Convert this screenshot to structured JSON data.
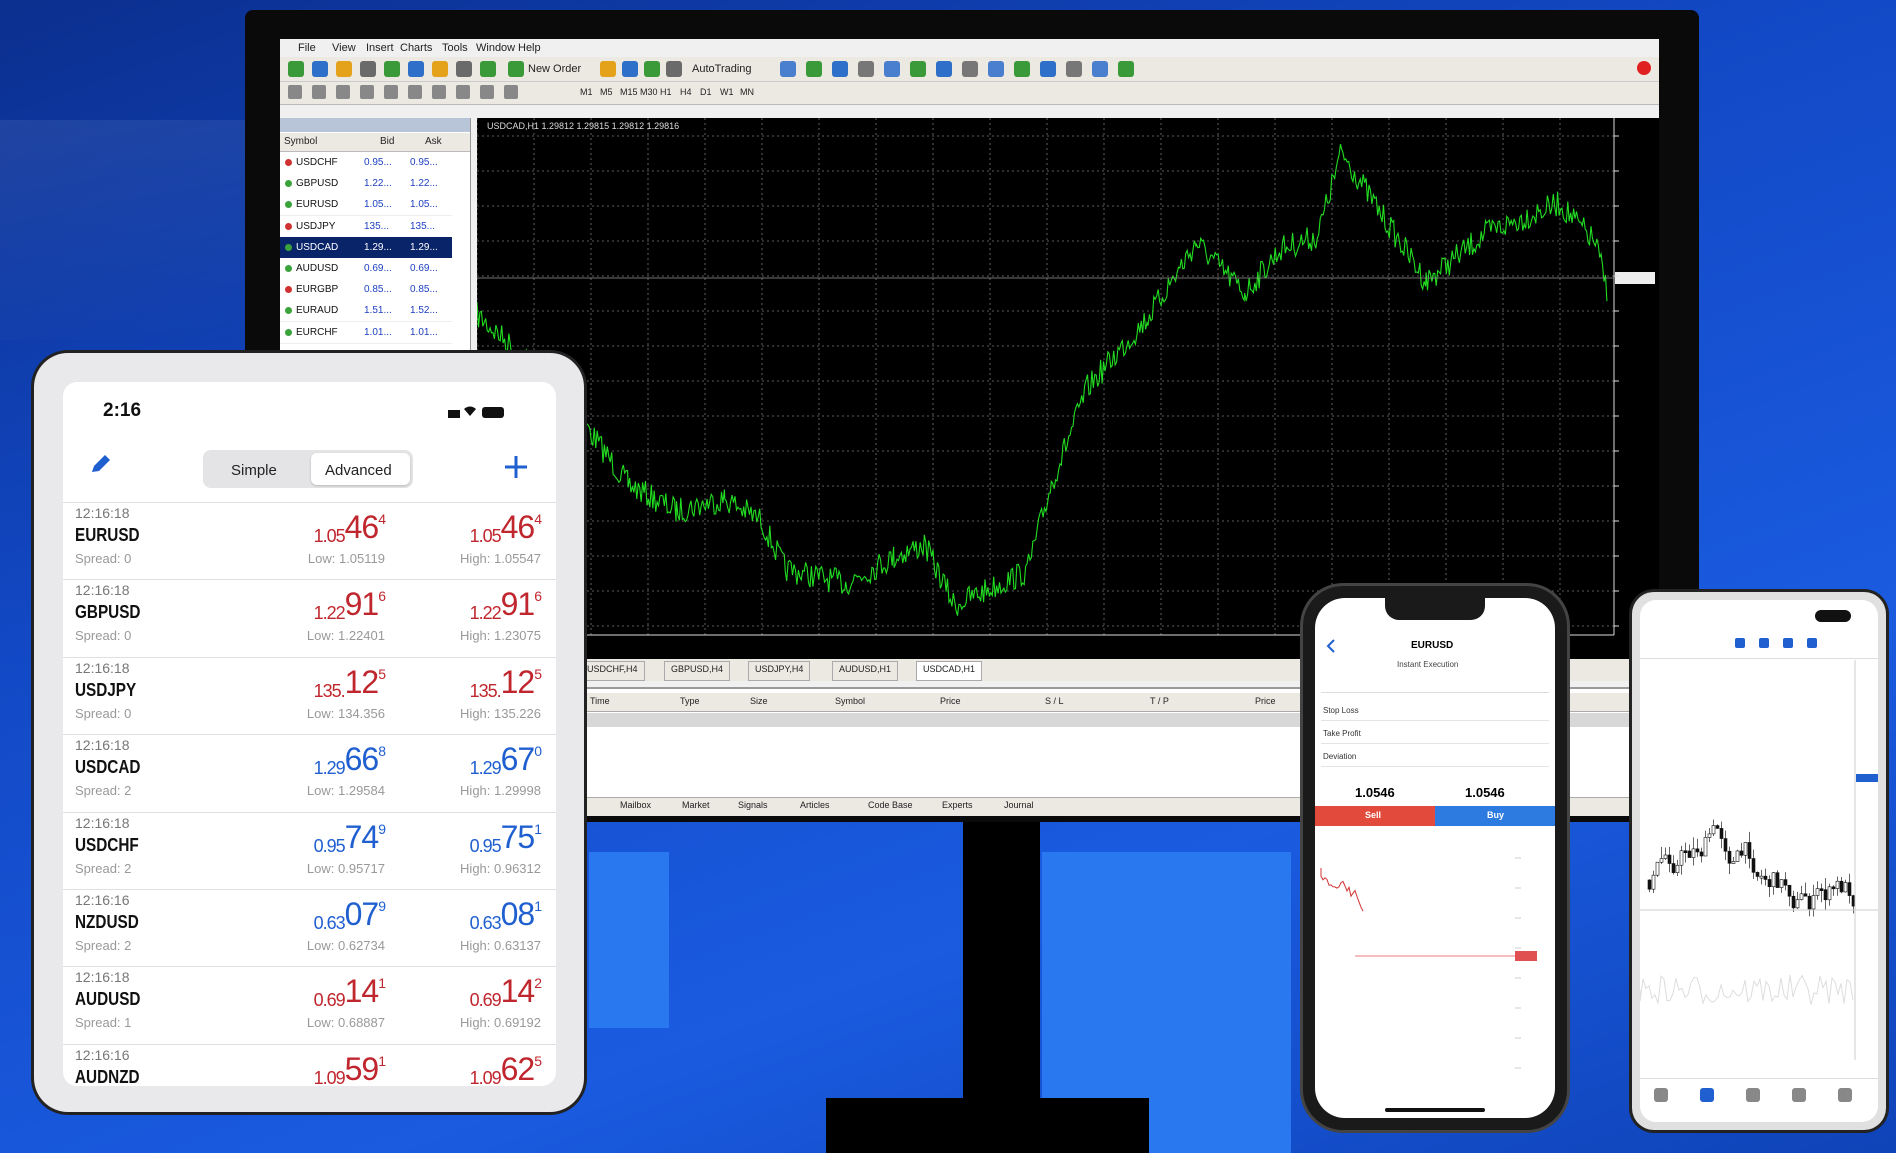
{
  "desktop": {
    "menu": [
      "File",
      "View",
      "Insert",
      "Charts",
      "Tools",
      "Window",
      "Help"
    ],
    "toolbar": [
      "New Order",
      "AutoTrading"
    ],
    "timeframes": [
      "M1",
      "M5",
      "M15",
      "M30",
      "H1",
      "H4",
      "D1",
      "W1",
      "MN"
    ],
    "market_watch": {
      "columns": [
        "Symbol",
        "Bid",
        "Ask"
      ],
      "rows": [
        [
          "USDCHF",
          "0.95...",
          "0.95..."
        ],
        [
          "GBPUSD",
          "1.22...",
          "1.22..."
        ],
        [
          "EURUSD",
          "1.05...",
          "1.05..."
        ],
        [
          "USDJPY",
          "135...",
          "135..."
        ],
        [
          "USDCAD",
          "1.29...",
          "1.29..."
        ],
        [
          "AUDUSD",
          "0.69...",
          "0.69..."
        ],
        [
          "EURGBP",
          "0.85...",
          "0.85..."
        ],
        [
          "EURAUD",
          "1.51...",
          "1.52..."
        ],
        [
          "EURCHF",
          "1.01...",
          "1.01..."
        ]
      ]
    },
    "chart_title": "USDCAD,H1 1.29812 1.29815 1.29812 1.29816",
    "chart_tabs": [
      "USDCHF,H4",
      "GBPUSD,H4",
      "USDJPY,H4",
      "AUDUSD,H1",
      "USDCAD,H1"
    ],
    "terminal_columns": [
      "Time",
      "Type",
      "Size",
      "Symbol",
      "Price",
      "S / L",
      "T / P",
      "Price"
    ],
    "terminal_tabs": [
      "Mailbox",
      "Market",
      "Signals",
      "Articles",
      "Code Base",
      "Experts",
      "Journal"
    ]
  },
  "tablet": {
    "time": "2:16",
    "modes": [
      "Simple",
      "Advanced"
    ],
    "quotes": [
      {
        "time": "12:16:18",
        "symbol": "EURUSD",
        "spread": "Spread: 0",
        "color": "#c0262d",
        "bid": [
          "1.05",
          "46",
          "4"
        ],
        "ask": [
          "1.05",
          "46",
          "4"
        ],
        "low": "Low: 1.05119",
        "high": "High: 1.05547"
      },
      {
        "time": "12:16:18",
        "symbol": "GBPUSD",
        "spread": "Spread: 0",
        "color": "#c0262d",
        "bid": [
          "1.22",
          "91",
          "6"
        ],
        "ask": [
          "1.22",
          "91",
          "6"
        ],
        "low": "Low: 1.22401",
        "high": "High: 1.23075"
      },
      {
        "time": "12:16:18",
        "symbol": "USDJPY",
        "spread": "Spread: 0",
        "color": "#c0262d",
        "bid": [
          "135.",
          "12",
          "5"
        ],
        "ask": [
          "135.",
          "12",
          "5"
        ],
        "low": "Low: 134.356",
        "high": "High: 135.226"
      },
      {
        "time": "12:16:18",
        "symbol": "USDCAD",
        "spread": "Spread: 2",
        "color": "#1f5fd0",
        "bid": [
          "1.29",
          "66",
          "8"
        ],
        "ask": [
          "1.29",
          "67",
          "0"
        ],
        "low": "Low: 1.29584",
        "high": "High: 1.29998"
      },
      {
        "time": "12:16:18",
        "symbol": "USDCHF",
        "spread": "Spread: 2",
        "color": "#1f5fd0",
        "bid": [
          "0.95",
          "74",
          "9"
        ],
        "ask": [
          "0.95",
          "75",
          "1"
        ],
        "low": "Low: 0.95717",
        "high": "High: 0.96312"
      },
      {
        "time": "12:16:16",
        "symbol": "NZDUSD",
        "spread": "Spread: 2",
        "color": "#1f5fd0",
        "bid": [
          "0.63",
          "07",
          "9"
        ],
        "ask": [
          "0.63",
          "08",
          "1"
        ],
        "low": "Low: 0.62734",
        "high": "High: 0.63137"
      },
      {
        "time": "12:16:18",
        "symbol": "AUDUSD",
        "spread": "Spread: 1",
        "color": "#c0262d",
        "bid": [
          "0.69",
          "14",
          "1"
        ],
        "ask": [
          "0.69",
          "14",
          "2"
        ],
        "low": "Low: 0.68887",
        "high": "High: 0.69192"
      },
      {
        "time": "12:16:16",
        "symbol": "AUDNZD",
        "color": "#c0262d",
        "bid": [
          "1.09",
          "59",
          "1"
        ],
        "ask": [
          "1.09",
          "62",
          "5"
        ]
      }
    ]
  },
  "phone": {
    "symbol": "EURUSD",
    "mode": "Instant Execution",
    "fields": [
      "Stop Loss",
      "Take Profit",
      "Deviation"
    ],
    "bid": "1.0546",
    "ask": "1.0546",
    "actions": [
      "Sell",
      "Buy"
    ]
  }
}
